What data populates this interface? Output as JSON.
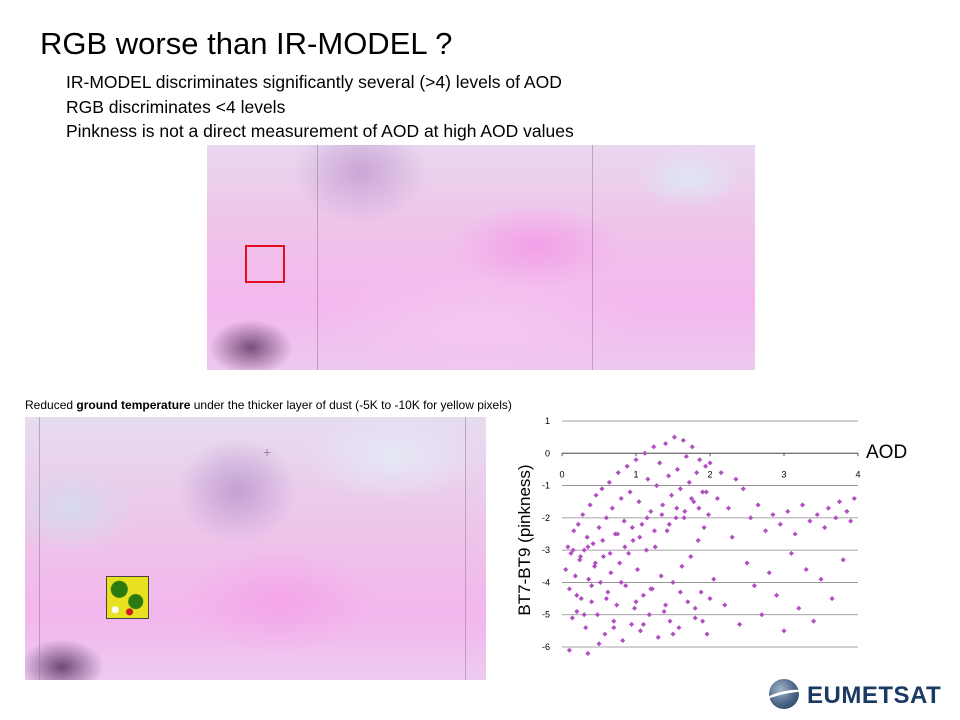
{
  "slide": {
    "title": "RGB worse than IR-MODEL ?",
    "bullets": [
      "IR-MODEL discriminates significantly several (>4) levels of AOD",
      "RGB discriminates <4 levels",
      "Pinkness is not a direct measurement of AOD at high AOD values"
    ],
    "caption_prefix": "Reduced ",
    "caption_bold": "ground temperature",
    "caption_suffix": " under the thicker layer of dust (-5K to -10K for yellow pixels)",
    "logo_text": "EUMETSAT"
  },
  "colors": {
    "marker": "#b050c0",
    "highlight_box": "#e01020",
    "logo": "#1b3a63"
  },
  "chart_data": {
    "type": "scatter",
    "xlabel": "AOD",
    "ylabel": "BT7-BT9 (pinkness)",
    "xlim": [
      0,
      4
    ],
    "ylim": [
      -6,
      1
    ],
    "x_ticks": [
      "0",
      "1",
      "2",
      "3",
      "4"
    ],
    "y_ticks": [
      "1",
      "0",
      "-1",
      "-2",
      "-3",
      "-4",
      "-5",
      "-6"
    ],
    "grid": "horizontal",
    "series": [
      {
        "points": [
          [
            0.05,
            -3.6
          ],
          [
            0.08,
            -2.9
          ],
          [
            0.1,
            -4.2
          ],
          [
            0.12,
            -3.1
          ],
          [
            0.14,
            -5.1
          ],
          [
            0.16,
            -2.4
          ],
          [
            0.18,
            -3.8
          ],
          [
            0.2,
            -4.9
          ],
          [
            0.22,
            -2.2
          ],
          [
            0.24,
            -3.3
          ],
          [
            0.26,
            -4.5
          ],
          [
            0.28,
            -1.9
          ],
          [
            0.3,
            -3.0
          ],
          [
            0.32,
            -5.4
          ],
          [
            0.34,
            -2.6
          ],
          [
            0.36,
            -3.9
          ],
          [
            0.38,
            -1.6
          ],
          [
            0.4,
            -4.6
          ],
          [
            0.42,
            -2.8
          ],
          [
            0.44,
            -3.5
          ],
          [
            0.46,
            -1.3
          ],
          [
            0.48,
            -5.0
          ],
          [
            0.5,
            -2.3
          ],
          [
            0.52,
            -4.0
          ],
          [
            0.54,
            -1.1
          ],
          [
            0.56,
            -3.2
          ],
          [
            0.58,
            -5.6
          ],
          [
            0.6,
            -2.0
          ],
          [
            0.62,
            -4.3
          ],
          [
            0.64,
            -0.9
          ],
          [
            0.66,
            -3.7
          ],
          [
            0.68,
            -1.7
          ],
          [
            0.7,
            -5.2
          ],
          [
            0.72,
            -2.5
          ],
          [
            0.74,
            -4.7
          ],
          [
            0.76,
            -0.6
          ],
          [
            0.78,
            -3.4
          ],
          [
            0.8,
            -1.4
          ],
          [
            0.82,
            -5.8
          ],
          [
            0.84,
            -2.1
          ],
          [
            0.86,
            -4.1
          ],
          [
            0.88,
            -0.4
          ],
          [
            0.9,
            -3.1
          ],
          [
            0.92,
            -1.2
          ],
          [
            0.94,
            -5.3
          ],
          [
            0.96,
            -2.7
          ],
          [
            0.98,
            -4.8
          ],
          [
            1.0,
            -0.2
          ],
          [
            1.02,
            -3.6
          ],
          [
            1.04,
            -1.5
          ],
          [
            1.06,
            -5.5
          ],
          [
            1.08,
            -2.2
          ],
          [
            1.1,
            -4.4
          ],
          [
            1.12,
            0.0
          ],
          [
            1.14,
            -3.0
          ],
          [
            1.16,
            -0.8
          ],
          [
            1.18,
            -5.0
          ],
          [
            1.2,
            -1.8
          ],
          [
            1.22,
            -4.2
          ],
          [
            1.24,
            0.2
          ],
          [
            1.26,
            -2.9
          ],
          [
            1.28,
            -1.0
          ],
          [
            1.3,
            -5.7
          ],
          [
            1.32,
            -0.3
          ],
          [
            1.34,
            -3.8
          ],
          [
            1.36,
            -1.6
          ],
          [
            1.38,
            -4.9
          ],
          [
            1.4,
            0.3
          ],
          [
            1.42,
            -2.4
          ],
          [
            1.44,
            -0.7
          ],
          [
            1.46,
            -5.2
          ],
          [
            1.48,
            -1.3
          ],
          [
            1.5,
            -4.0
          ],
          [
            1.52,
            0.5
          ],
          [
            1.54,
            -2.0
          ],
          [
            1.56,
            -0.5
          ],
          [
            1.58,
            -5.4
          ],
          [
            1.6,
            -1.1
          ],
          [
            1.62,
            -3.5
          ],
          [
            1.64,
            0.4
          ],
          [
            1.66,
            -1.8
          ],
          [
            1.68,
            -0.1
          ],
          [
            1.7,
            -4.6
          ],
          [
            1.72,
            -0.9
          ],
          [
            1.74,
            -3.2
          ],
          [
            1.76,
            0.2
          ],
          [
            1.78,
            -1.5
          ],
          [
            1.8,
            -5.1
          ],
          [
            1.82,
            -0.6
          ],
          [
            1.84,
            -2.7
          ],
          [
            1.86,
            -0.2
          ],
          [
            1.88,
            -4.3
          ],
          [
            1.9,
            -1.2
          ],
          [
            1.92,
            -2.3
          ],
          [
            1.94,
            -0.4
          ],
          [
            1.96,
            -5.6
          ],
          [
            1.98,
            -1.9
          ],
          [
            2.0,
            -0.3
          ],
          [
            2.05,
            -3.9
          ],
          [
            2.1,
            -1.4
          ],
          [
            2.15,
            -0.6
          ],
          [
            2.2,
            -4.7
          ],
          [
            2.25,
            -1.7
          ],
          [
            2.3,
            -2.6
          ],
          [
            2.35,
            -0.8
          ],
          [
            2.4,
            -5.3
          ],
          [
            2.45,
            -1.1
          ],
          [
            2.5,
            -3.4
          ],
          [
            2.55,
            -2.0
          ],
          [
            2.6,
            -4.1
          ],
          [
            2.65,
            -1.6
          ],
          [
            2.7,
            -5.0
          ],
          [
            2.75,
            -2.4
          ],
          [
            2.8,
            -3.7
          ],
          [
            2.85,
            -1.9
          ],
          [
            2.9,
            -4.4
          ],
          [
            2.95,
            -2.2
          ],
          [
            3.0,
            -5.5
          ],
          [
            3.05,
            -1.8
          ],
          [
            3.1,
            -3.1
          ],
          [
            3.15,
            -2.5
          ],
          [
            3.2,
            -4.8
          ],
          [
            3.25,
            -1.6
          ],
          [
            3.3,
            -3.6
          ],
          [
            3.35,
            -2.1
          ],
          [
            3.4,
            -5.2
          ],
          [
            3.45,
            -1.9
          ],
          [
            3.5,
            -3.9
          ],
          [
            3.55,
            -2.3
          ],
          [
            3.6,
            -1.7
          ],
          [
            3.65,
            -4.5
          ],
          [
            3.7,
            -2.0
          ],
          [
            3.75,
            -1.5
          ],
          [
            3.8,
            -3.3
          ],
          [
            3.85,
            -1.8
          ],
          [
            3.9,
            -2.1
          ],
          [
            3.95,
            -1.4
          ],
          [
            0.15,
            -3.0
          ],
          [
            0.25,
            -3.2
          ],
          [
            0.35,
            -2.9
          ],
          [
            0.45,
            -3.4
          ],
          [
            0.55,
            -2.7
          ],
          [
            0.65,
            -3.1
          ],
          [
            0.75,
            -2.5
          ],
          [
            0.85,
            -2.9
          ],
          [
            0.95,
            -2.3
          ],
          [
            1.05,
            -2.6
          ],
          [
            1.15,
            -2.0
          ],
          [
            1.25,
            -2.4
          ],
          [
            1.35,
            -1.9
          ],
          [
            1.45,
            -2.2
          ],
          [
            1.55,
            -1.7
          ],
          [
            1.65,
            -2.0
          ],
          [
            1.75,
            -1.4
          ],
          [
            1.85,
            -1.7
          ],
          [
            1.95,
            -1.2
          ],
          [
            0.2,
            -4.4
          ],
          [
            0.4,
            -4.1
          ],
          [
            0.6,
            -4.5
          ],
          [
            0.8,
            -4.0
          ],
          [
            1.0,
            -4.6
          ],
          [
            1.2,
            -4.2
          ],
          [
            1.4,
            -4.7
          ],
          [
            1.6,
            -4.3
          ],
          [
            1.8,
            -4.8
          ],
          [
            2.0,
            -4.5
          ],
          [
            0.3,
            -5.0
          ],
          [
            0.7,
            -5.4
          ],
          [
            1.1,
            -5.3
          ],
          [
            1.5,
            -5.6
          ],
          [
            1.9,
            -5.2
          ],
          [
            0.1,
            -6.1
          ],
          [
            0.35,
            -6.2
          ],
          [
            0.5,
            -5.9
          ]
        ]
      }
    ]
  }
}
